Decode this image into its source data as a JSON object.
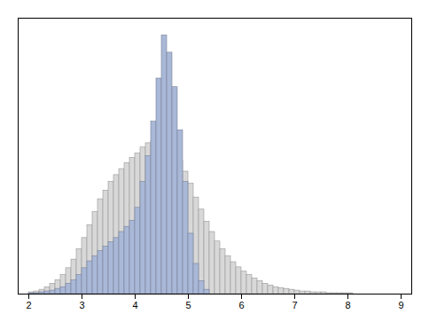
{
  "chart_data": {
    "type": "histogram",
    "series": [
      {
        "color": "#d8d8d8",
        "bins": [
          2,
          2.1,
          2.2,
          2.3,
          2.4,
          2.5,
          2.6,
          2.7,
          2.8,
          2.9,
          3,
          3.1,
          3.2,
          3.3,
          3.4,
          3.5,
          3.6,
          3.7,
          3.8,
          3.9,
          4,
          4.1,
          4.2,
          4.3,
          4.4,
          4.5,
          4.6,
          4.7,
          4.8,
          4.9,
          5,
          5.1,
          5.2,
          5.3,
          5.4,
          5.5,
          5.6,
          5.7,
          5.8,
          5.9,
          6,
          6.1,
          6.2,
          6.3,
          6.4,
          6.5,
          6.6,
          6.7,
          6.8,
          6.9,
          7,
          7.1,
          7.2,
          7.3,
          7.4,
          7.5,
          7.6,
          7.7,
          7.8,
          7.9,
          8,
          8.1,
          8.2,
          8.3,
          8.4,
          8.5,
          8.6,
          8.7,
          8.8,
          8.9,
          9
        ],
        "values": [
          2,
          3,
          5,
          8,
          12,
          16,
          22,
          30,
          40,
          52,
          65,
          80,
          95,
          110,
          120,
          130,
          138,
          145,
          152,
          158,
          163,
          170,
          175,
          178,
          180,
          178,
          173,
          165,
          155,
          142,
          128,
          112,
          98,
          84,
          72,
          61,
          52,
          44,
          37,
          31,
          26,
          22,
          18,
          15,
          12,
          10,
          8,
          7,
          6,
          5,
          4,
          3,
          3,
          2,
          2,
          2,
          1,
          1,
          1,
          1,
          1,
          0,
          0,
          0,
          0,
          0,
          0,
          0,
          0,
          0
        ]
      },
      {
        "color": "#aab8d8",
        "bins": [
          2,
          2.1,
          2.2,
          2.3,
          2.4,
          2.5,
          2.6,
          2.7,
          2.8,
          2.9,
          3,
          3.1,
          3.2,
          3.3,
          3.4,
          3.5,
          3.6,
          3.7,
          3.8,
          3.9,
          4,
          4.1,
          4.2,
          4.3,
          4.4,
          4.5,
          4.6,
          4.7,
          4.8,
          4.9,
          5,
          5.1,
          5.2,
          5.3,
          5.4
        ],
        "values": [
          1,
          1,
          2,
          3,
          4,
          6,
          8,
          12,
          16,
          22,
          30,
          38,
          44,
          50,
          55,
          60,
          65,
          72,
          78,
          85,
          100,
          130,
          160,
          200,
          250,
          300,
          280,
          240,
          190,
          130,
          70,
          35,
          15,
          5
        ]
      }
    ],
    "xlim": [
      1.8,
      9.2
    ],
    "ylim": [
      0,
      320
    ],
    "xticks": [
      2,
      3,
      4,
      5,
      6,
      7,
      8,
      9
    ],
    "tick_labels": "x"
  }
}
